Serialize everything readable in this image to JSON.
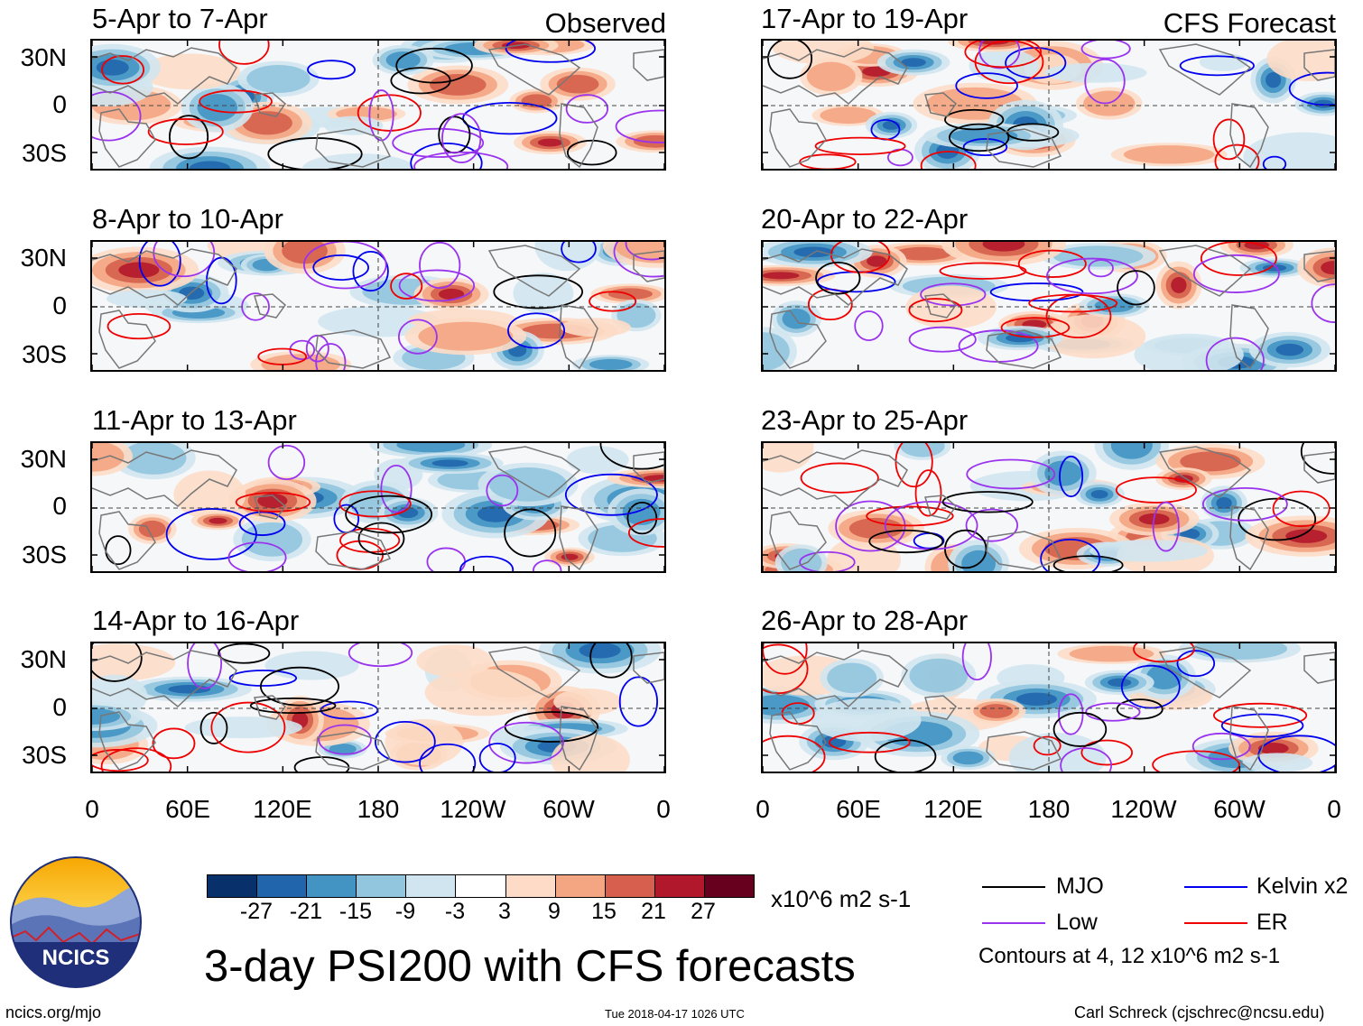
{
  "figure": {
    "title": "3-day PSI200 with CFS forecasts",
    "left_column_label": "Observed",
    "right_column_label": "CFS Forecast",
    "website": "ncics.org/mjo",
    "timestamp": "Tue 2018-04-17 1026 UTC",
    "author": "Carl Schreck (cjschrec@ncsu.edu)",
    "logo_text": "NCICS"
  },
  "panels": [
    {
      "period": "5-Apr to 7-Apr",
      "type": "observed"
    },
    {
      "period": "8-Apr to 10-Apr",
      "type": "observed"
    },
    {
      "period": "11-Apr to 13-Apr",
      "type": "observed"
    },
    {
      "period": "14-Apr to 16-Apr",
      "type": "observed"
    },
    {
      "period": "17-Apr to 19-Apr",
      "type": "forecast"
    },
    {
      "period": "20-Apr to 22-Apr",
      "type": "forecast"
    },
    {
      "period": "23-Apr to 25-Apr",
      "type": "forecast"
    },
    {
      "period": "26-Apr to 28-Apr",
      "type": "forecast"
    }
  ],
  "axes": {
    "lat_ticks": [
      "30N",
      "0",
      "30S"
    ],
    "lon_ticks": [
      "0",
      "60E",
      "120E",
      "180",
      "120W",
      "60W",
      "0"
    ]
  },
  "colorbar": {
    "units": "x10^6 m2 s-1",
    "labels": [
      "-27",
      "-21",
      "-15",
      "-9",
      "-3",
      "3",
      "9",
      "15",
      "21",
      "27"
    ],
    "colors": [
      "#08306b",
      "#2166ac",
      "#4393c3",
      "#92c5de",
      "#d1e5f0",
      "#ffffff",
      "#fddbc7",
      "#f4a582",
      "#d6604d",
      "#b2182b",
      "#67001f"
    ]
  },
  "legend": {
    "items": [
      {
        "label": "MJO",
        "color": "#000000"
      },
      {
        "label": "Kelvin x2",
        "color": "#0000ee"
      },
      {
        "label": "Low",
        "color": "#9933ee"
      },
      {
        "label": "ER",
        "color": "#ee0000"
      }
    ],
    "note": "Contours at 4, 12 x10^6 m2 s-1"
  }
}
